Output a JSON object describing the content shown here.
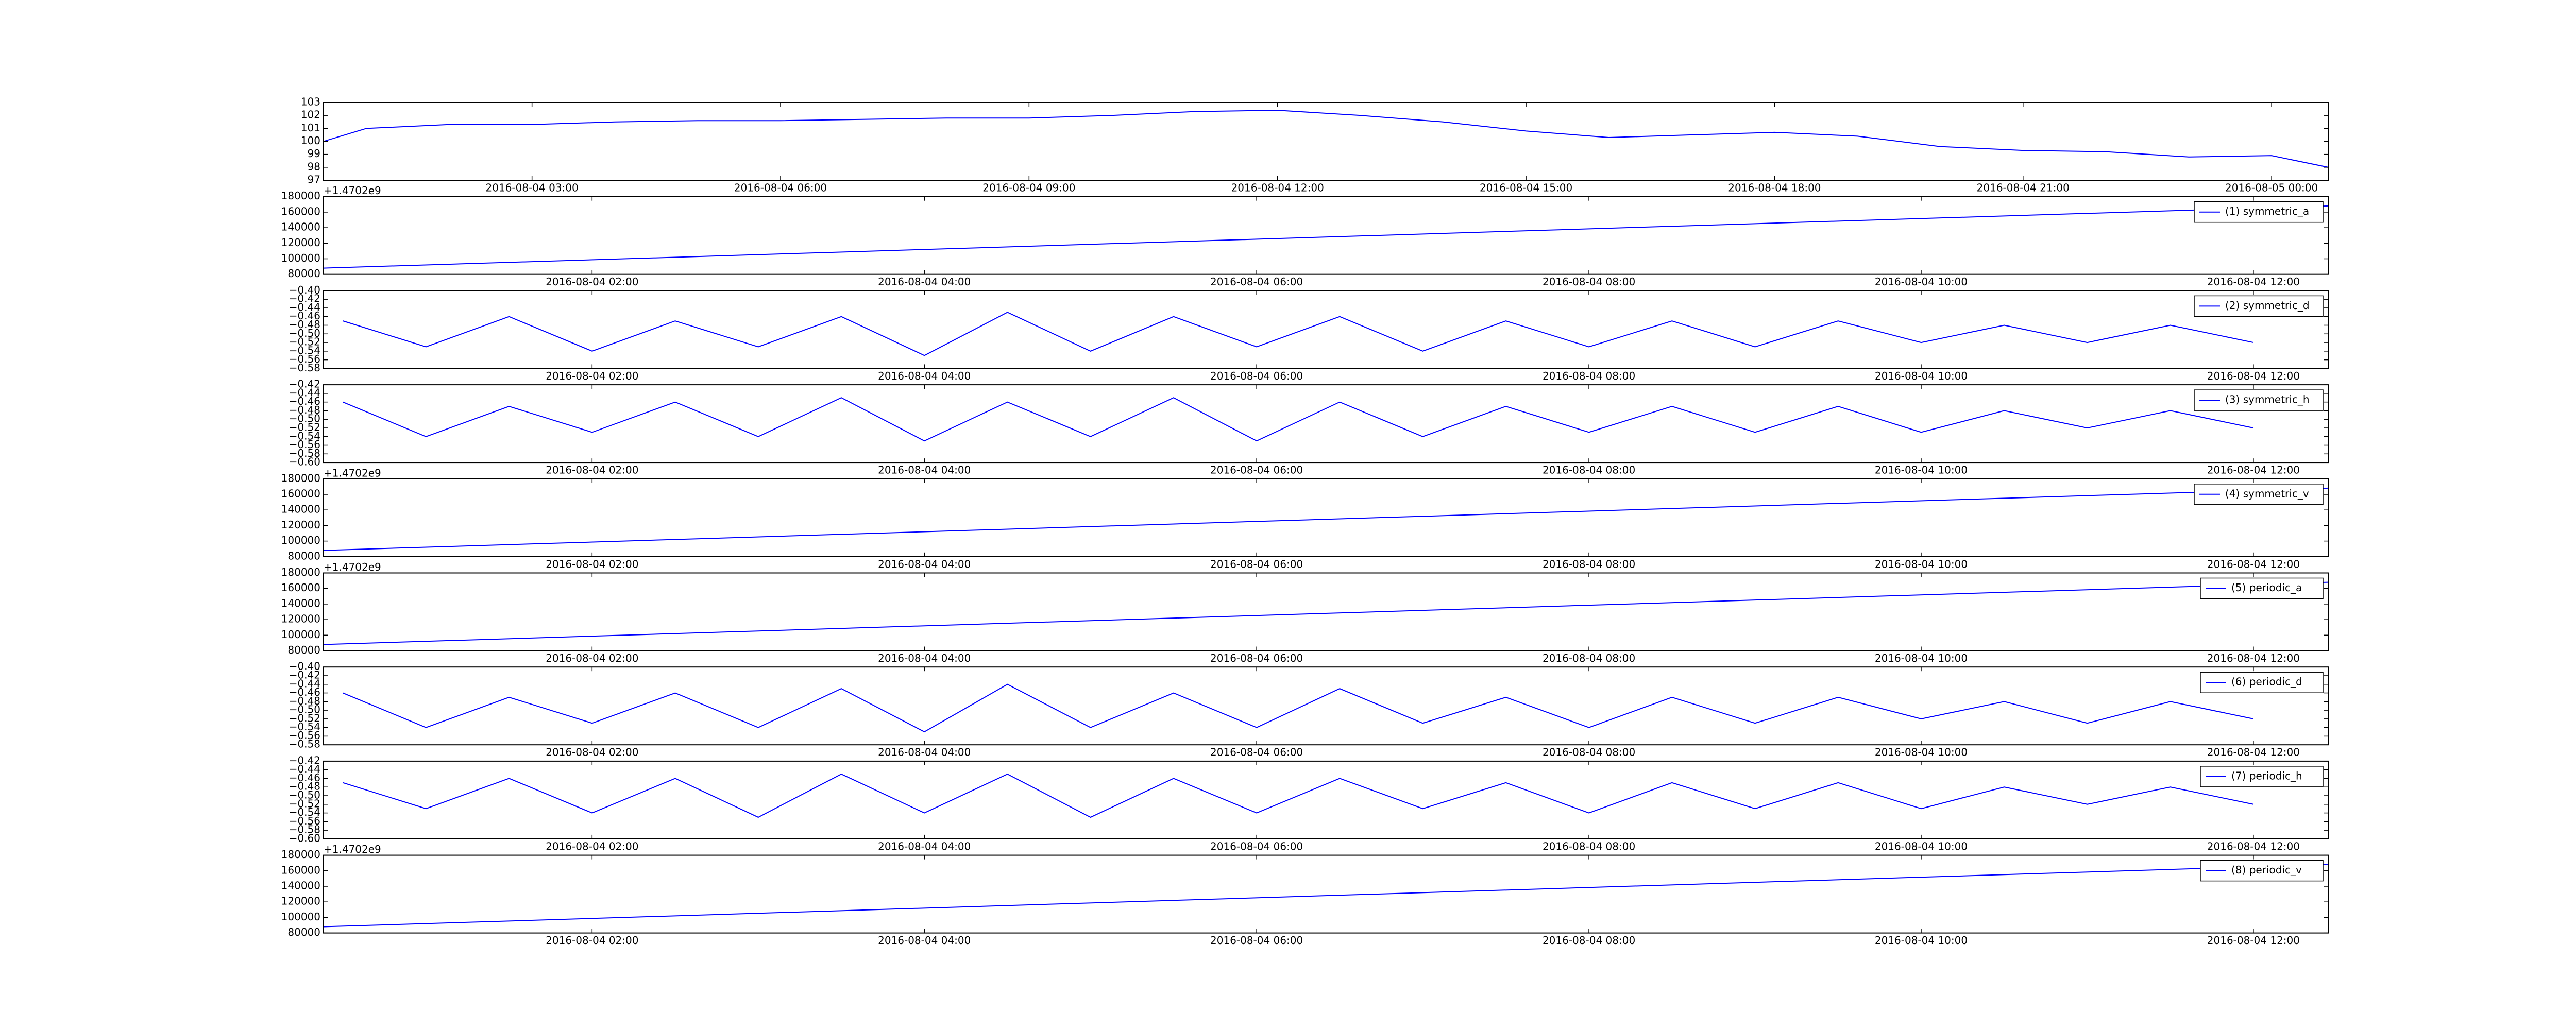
{
  "chart_data": [
    {
      "type": "line",
      "xlim": [
        "2016-08-04 00:29",
        "2016-08-05 00:41"
      ],
      "xticks": [
        "2016-08-04 03:00",
        "2016-08-04 06:00",
        "2016-08-04 09:00",
        "2016-08-04 12:00",
        "2016-08-04 15:00",
        "2016-08-04 18:00",
        "2016-08-04 21:00",
        "2016-08-05 00:00"
      ],
      "ylim": [
        97,
        103
      ],
      "yticks": [
        97,
        98,
        99,
        100,
        101,
        102,
        103
      ],
      "x": [
        "2016-08-04 00:29",
        "2016-08-04 01:00",
        "2016-08-04 02:00",
        "2016-08-04 03:00",
        "2016-08-04 04:00",
        "2016-08-04 05:00",
        "2016-08-04 06:00",
        "2016-08-04 07:00",
        "2016-08-04 08:00",
        "2016-08-04 09:00",
        "2016-08-04 10:00",
        "2016-08-04 11:00",
        "2016-08-04 12:00",
        "2016-08-04 13:00",
        "2016-08-04 14:00",
        "2016-08-04 15:00",
        "2016-08-04 16:00",
        "2016-08-04 17:00",
        "2016-08-04 18:00",
        "2016-08-04 19:00",
        "2016-08-04 20:00",
        "2016-08-04 21:00",
        "2016-08-04 22:00",
        "2016-08-04 23:00",
        "2016-08-05 00:00",
        "2016-08-05 00:41"
      ],
      "series": [
        {
          "color": "#0000ff",
          "values": [
            100.0,
            101.0,
            101.3,
            101.3,
            101.5,
            101.6,
            101.6,
            101.7,
            101.8,
            101.8,
            102.0,
            102.3,
            102.4,
            102.0,
            101.5,
            100.8,
            100.3,
            100.5,
            100.7,
            100.4,
            99.6,
            99.3,
            99.2,
            98.8,
            98.9,
            98.0
          ]
        }
      ]
    },
    {
      "type": "line",
      "offset_text": "+1.4702e9",
      "xlim": [
        "2016-08-04 00:23",
        "2016-08-04 12:27"
      ],
      "xticks": [
        "2016-08-04 02:00",
        "2016-08-04 04:00",
        "2016-08-04 06:00",
        "2016-08-04 08:00",
        "2016-08-04 10:00",
        "2016-08-04 12:00"
      ],
      "ylim": [
        80000,
        180000
      ],
      "yticks": [
        80000,
        100000,
        120000,
        140000,
        160000,
        180000
      ],
      "x": [
        "2016-08-04 00:23",
        "2016-08-04 12:27"
      ],
      "series": [
        {
          "name": "(1) symmetric_a",
          "color": "#0000ff",
          "values": [
            88000,
            168000
          ]
        }
      ]
    },
    {
      "type": "line",
      "xlim": [
        "2016-08-04 00:23",
        "2016-08-04 12:27"
      ],
      "xticks": [
        "2016-08-04 02:00",
        "2016-08-04 04:00",
        "2016-08-04 06:00",
        "2016-08-04 08:00",
        "2016-08-04 10:00",
        "2016-08-04 12:00"
      ],
      "ylim": [
        -0.58,
        -0.4
      ],
      "yticks": [
        {
          "value": -0.58,
          "label": "−0.58"
        },
        {
          "value": -0.56,
          "label": "−0.56"
        },
        {
          "value": -0.54,
          "label": "−0.54"
        },
        {
          "value": -0.52,
          "label": "−0.52"
        },
        {
          "value": -0.5,
          "label": "−0.50"
        },
        {
          "value": -0.48,
          "label": "−0.48"
        },
        {
          "value": -0.46,
          "label": "−0.46"
        },
        {
          "value": -0.44,
          "label": "−0.44"
        },
        {
          "value": -0.42,
          "label": "−0.42"
        },
        {
          "value": -0.4,
          "label": "−0.40"
        }
      ],
      "x": [
        "2016-08-04 00:30",
        "2016-08-04 01:00",
        "2016-08-04 01:30",
        "2016-08-04 02:00",
        "2016-08-04 02:30",
        "2016-08-04 03:00",
        "2016-08-04 03:30",
        "2016-08-04 04:00",
        "2016-08-04 04:30",
        "2016-08-04 05:00",
        "2016-08-04 05:30",
        "2016-08-04 06:00",
        "2016-08-04 06:30",
        "2016-08-04 07:00",
        "2016-08-04 07:30",
        "2016-08-04 08:00",
        "2016-08-04 08:30",
        "2016-08-04 09:00",
        "2016-08-04 09:30",
        "2016-08-04 10:00",
        "2016-08-04 10:30",
        "2016-08-04 11:00",
        "2016-08-04 11:30",
        "2016-08-04 12:00"
      ],
      "series": [
        {
          "name": "(2) symmetric_d",
          "color": "#0000ff",
          "values": [
            -0.47,
            -0.53,
            -0.46,
            -0.54,
            -0.47,
            -0.53,
            -0.46,
            -0.55,
            -0.45,
            -0.54,
            -0.46,
            -0.53,
            -0.46,
            -0.54,
            -0.47,
            -0.53,
            -0.47,
            -0.53,
            -0.47,
            -0.52,
            -0.48,
            -0.52,
            -0.48,
            -0.52
          ]
        }
      ]
    },
    {
      "type": "line",
      "xlim": [
        "2016-08-04 00:23",
        "2016-08-04 12:27"
      ],
      "xticks": [
        "2016-08-04 02:00",
        "2016-08-04 04:00",
        "2016-08-04 06:00",
        "2016-08-04 08:00",
        "2016-08-04 10:00",
        "2016-08-04 12:00"
      ],
      "ylim": [
        -0.6,
        -0.42
      ],
      "yticks": [
        {
          "value": -0.6,
          "label": "−0.60"
        },
        {
          "value": -0.58,
          "label": "−0.58"
        },
        {
          "value": -0.56,
          "label": "−0.56"
        },
        {
          "value": -0.54,
          "label": "−0.54"
        },
        {
          "value": -0.52,
          "label": "−0.52"
        },
        {
          "value": -0.5,
          "label": "−0.50"
        },
        {
          "value": -0.48,
          "label": "−0.48"
        },
        {
          "value": -0.46,
          "label": "−0.46"
        },
        {
          "value": -0.44,
          "label": "−0.44"
        },
        {
          "value": -0.42,
          "label": "−0.42"
        }
      ],
      "x": [
        "2016-08-04 00:30",
        "2016-08-04 01:00",
        "2016-08-04 01:30",
        "2016-08-04 02:00",
        "2016-08-04 02:30",
        "2016-08-04 03:00",
        "2016-08-04 03:30",
        "2016-08-04 04:00",
        "2016-08-04 04:30",
        "2016-08-04 05:00",
        "2016-08-04 05:30",
        "2016-08-04 06:00",
        "2016-08-04 06:30",
        "2016-08-04 07:00",
        "2016-08-04 07:30",
        "2016-08-04 08:00",
        "2016-08-04 08:30",
        "2016-08-04 09:00",
        "2016-08-04 09:30",
        "2016-08-04 10:00",
        "2016-08-04 10:30",
        "2016-08-04 11:00",
        "2016-08-04 11:30",
        "2016-08-04 12:00"
      ],
      "series": [
        {
          "name": "(3) symmetric_h",
          "color": "#0000ff",
          "values": [
            -0.46,
            -0.54,
            -0.47,
            -0.53,
            -0.46,
            -0.54,
            -0.45,
            -0.55,
            -0.46,
            -0.54,
            -0.45,
            -0.55,
            -0.46,
            -0.54,
            -0.47,
            -0.53,
            -0.47,
            -0.53,
            -0.47,
            -0.53,
            -0.48,
            -0.52,
            -0.48,
            -0.52
          ]
        }
      ]
    },
    {
      "type": "line",
      "offset_text": "+1.4702e9",
      "xlim": [
        "2016-08-04 00:23",
        "2016-08-04 12:27"
      ],
      "xticks": [
        "2016-08-04 02:00",
        "2016-08-04 04:00",
        "2016-08-04 06:00",
        "2016-08-04 08:00",
        "2016-08-04 10:00",
        "2016-08-04 12:00"
      ],
      "ylim": [
        80000,
        180000
      ],
      "yticks": [
        80000,
        100000,
        120000,
        140000,
        160000,
        180000
      ],
      "x": [
        "2016-08-04 00:23",
        "2016-08-04 12:27"
      ],
      "series": [
        {
          "name": "(4) symmetric_v",
          "color": "#0000ff",
          "values": [
            88000,
            168000
          ]
        }
      ]
    },
    {
      "type": "line",
      "offset_text": "+1.4702e9",
      "xlim": [
        "2016-08-04 00:23",
        "2016-08-04 12:27"
      ],
      "xticks": [
        "2016-08-04 02:00",
        "2016-08-04 04:00",
        "2016-08-04 06:00",
        "2016-08-04 08:00",
        "2016-08-04 10:00",
        "2016-08-04 12:00"
      ],
      "ylim": [
        80000,
        180000
      ],
      "yticks": [
        80000,
        100000,
        120000,
        140000,
        160000,
        180000
      ],
      "x": [
        "2016-08-04 00:23",
        "2016-08-04 12:27"
      ],
      "series": [
        {
          "name": "(5) periodic_a",
          "color": "#0000ff",
          "values": [
            88000,
            168000
          ]
        }
      ]
    },
    {
      "type": "line",
      "xlim": [
        "2016-08-04 00:23",
        "2016-08-04 12:27"
      ],
      "xticks": [
        "2016-08-04 02:00",
        "2016-08-04 04:00",
        "2016-08-04 06:00",
        "2016-08-04 08:00",
        "2016-08-04 10:00",
        "2016-08-04 12:00"
      ],
      "ylim": [
        -0.58,
        -0.4
      ],
      "yticks": [
        {
          "value": -0.58,
          "label": "−0.58"
        },
        {
          "value": -0.56,
          "label": "−0.56"
        },
        {
          "value": -0.54,
          "label": "−0.54"
        },
        {
          "value": -0.52,
          "label": "−0.52"
        },
        {
          "value": -0.5,
          "label": "−0.50"
        },
        {
          "value": -0.48,
          "label": "−0.48"
        },
        {
          "value": -0.46,
          "label": "−0.46"
        },
        {
          "value": -0.44,
          "label": "−0.44"
        },
        {
          "value": -0.42,
          "label": "−0.42"
        },
        {
          "value": -0.4,
          "label": "−0.40"
        }
      ],
      "x": [
        "2016-08-04 00:30",
        "2016-08-04 01:00",
        "2016-08-04 01:30",
        "2016-08-04 02:00",
        "2016-08-04 02:30",
        "2016-08-04 03:00",
        "2016-08-04 03:30",
        "2016-08-04 04:00",
        "2016-08-04 04:30",
        "2016-08-04 05:00",
        "2016-08-04 05:30",
        "2016-08-04 06:00",
        "2016-08-04 06:30",
        "2016-08-04 07:00",
        "2016-08-04 07:30",
        "2016-08-04 08:00",
        "2016-08-04 08:30",
        "2016-08-04 09:00",
        "2016-08-04 09:30",
        "2016-08-04 10:00",
        "2016-08-04 10:30",
        "2016-08-04 11:00",
        "2016-08-04 11:30",
        "2016-08-04 12:00"
      ],
      "series": [
        {
          "name": "(6) periodic_d",
          "color": "#0000ff",
          "values": [
            -0.46,
            -0.54,
            -0.47,
            -0.53,
            -0.46,
            -0.54,
            -0.45,
            -0.55,
            -0.44,
            -0.54,
            -0.46,
            -0.54,
            -0.45,
            -0.53,
            -0.47,
            -0.54,
            -0.47,
            -0.53,
            -0.47,
            -0.52,
            -0.48,
            -0.53,
            -0.48,
            -0.52
          ]
        }
      ]
    },
    {
      "type": "line",
      "xlim": [
        "2016-08-04 00:23",
        "2016-08-04 12:27"
      ],
      "xticks": [
        "2016-08-04 02:00",
        "2016-08-04 04:00",
        "2016-08-04 06:00",
        "2016-08-04 08:00",
        "2016-08-04 10:00",
        "2016-08-04 12:00"
      ],
      "ylim": [
        -0.6,
        -0.42
      ],
      "yticks": [
        {
          "value": -0.6,
          "label": "−0.60"
        },
        {
          "value": -0.58,
          "label": "−0.58"
        },
        {
          "value": -0.56,
          "label": "−0.56"
        },
        {
          "value": -0.54,
          "label": "−0.54"
        },
        {
          "value": -0.52,
          "label": "−0.52"
        },
        {
          "value": -0.5,
          "label": "−0.50"
        },
        {
          "value": -0.48,
          "label": "−0.48"
        },
        {
          "value": -0.46,
          "label": "−0.46"
        },
        {
          "value": -0.44,
          "label": "−0.44"
        },
        {
          "value": -0.42,
          "label": "−0.42"
        }
      ],
      "x": [
        "2016-08-04 00:30",
        "2016-08-04 01:00",
        "2016-08-04 01:30",
        "2016-08-04 02:00",
        "2016-08-04 02:30",
        "2016-08-04 03:00",
        "2016-08-04 03:30",
        "2016-08-04 04:00",
        "2016-08-04 04:30",
        "2016-08-04 05:00",
        "2016-08-04 05:30",
        "2016-08-04 06:00",
        "2016-08-04 06:30",
        "2016-08-04 07:00",
        "2016-08-04 07:30",
        "2016-08-04 08:00",
        "2016-08-04 08:30",
        "2016-08-04 09:00",
        "2016-08-04 09:30",
        "2016-08-04 10:00",
        "2016-08-04 10:30",
        "2016-08-04 11:00",
        "2016-08-04 11:30",
        "2016-08-04 12:00"
      ],
      "series": [
        {
          "name": "(7) periodic_h",
          "color": "#0000ff",
          "values": [
            -0.47,
            -0.53,
            -0.46,
            -0.54,
            -0.46,
            -0.55,
            -0.45,
            -0.54,
            -0.45,
            -0.55,
            -0.46,
            -0.54,
            -0.46,
            -0.53,
            -0.47,
            -0.54,
            -0.47,
            -0.53,
            -0.47,
            -0.53,
            -0.48,
            -0.52,
            -0.48,
            -0.52
          ]
        }
      ]
    },
    {
      "type": "line",
      "offset_text": "+1.4702e9",
      "xlim": [
        "2016-08-04 00:23",
        "2016-08-04 12:27"
      ],
      "xticks": [
        "2016-08-04 02:00",
        "2016-08-04 04:00",
        "2016-08-04 06:00",
        "2016-08-04 08:00",
        "2016-08-04 10:00",
        "2016-08-04 12:00"
      ],
      "ylim": [
        80000,
        180000
      ],
      "yticks": [
        80000,
        100000,
        120000,
        140000,
        160000,
        180000
      ],
      "x": [
        "2016-08-04 00:23",
        "2016-08-04 12:27"
      ],
      "series": [
        {
          "name": "(8) periodic_v",
          "color": "#0000ff",
          "values": [
            88000,
            168000
          ]
        }
      ]
    }
  ]
}
